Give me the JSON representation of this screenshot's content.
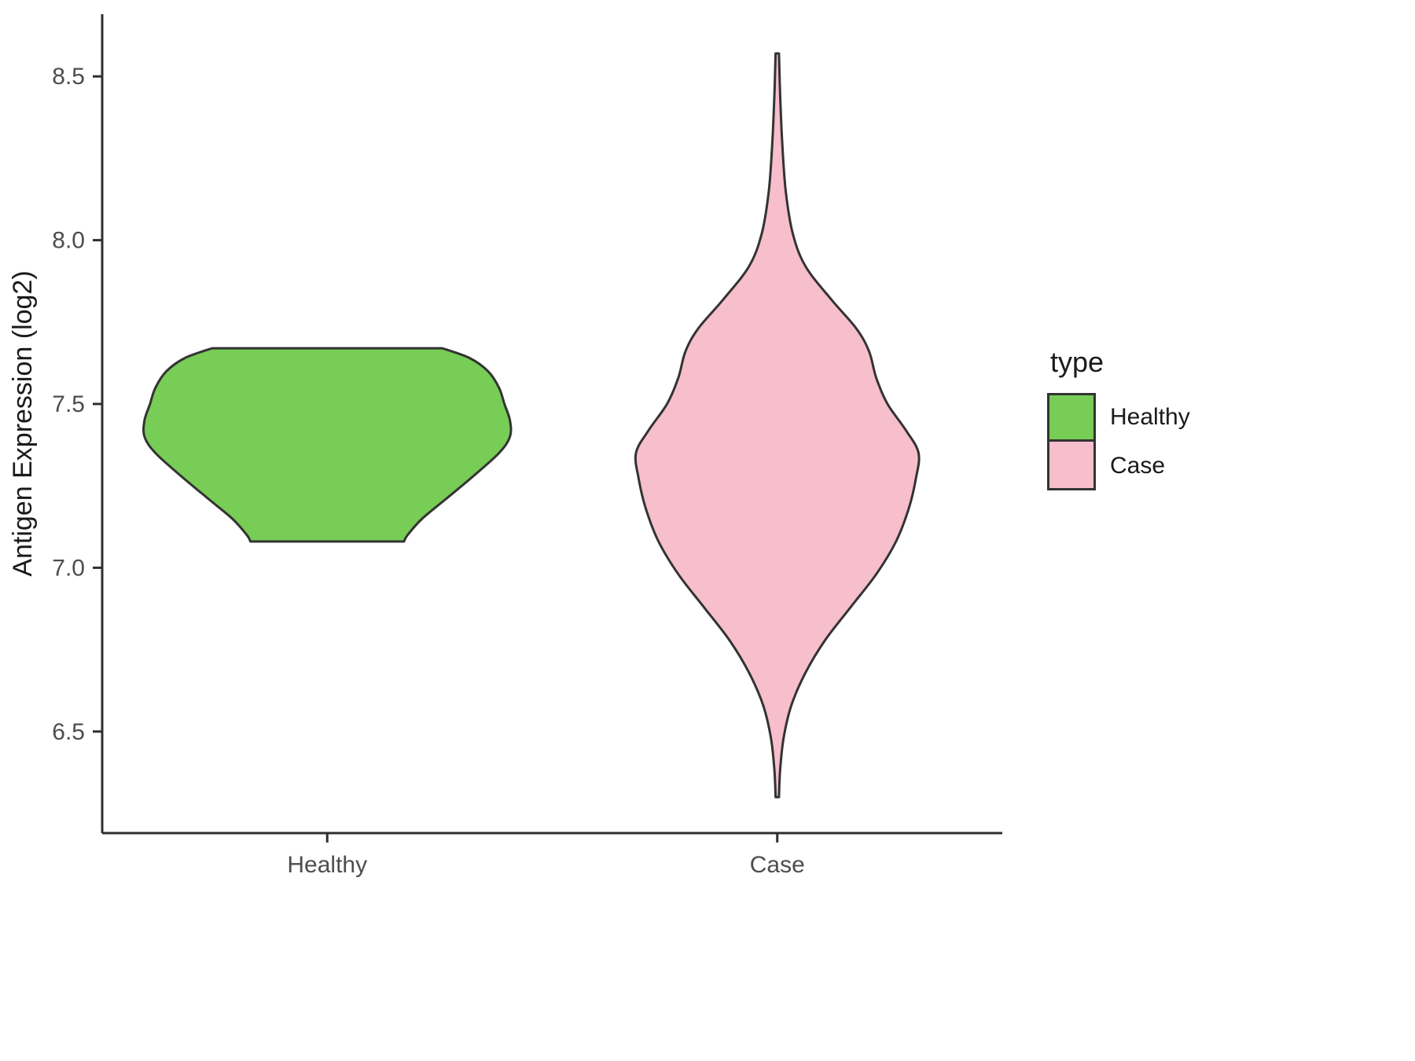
{
  "chart_data": {
    "type": "violin",
    "title": "",
    "xlabel": "",
    "ylabel": "Antigen Expression (log2)",
    "categories": [
      "Healthy",
      "Case"
    ],
    "ylim": [
      6.19,
      8.69
    ],
    "yticks": [
      6.5,
      7.0,
      7.5,
      8.0,
      8.5
    ],
    "ytick_labels": [
      "6.5",
      "7.0",
      "7.5",
      "8.0",
      "8.5"
    ],
    "grid": false,
    "legend": {
      "title": "type",
      "position": "right",
      "entries": [
        {
          "label": "Healthy",
          "color": "#77cd55"
        },
        {
          "label": "Case",
          "color": "#f6bfcb"
        }
      ]
    },
    "series": [
      {
        "name": "Healthy",
        "fill": "#77cd55",
        "outline": "#333333",
        "max_halfwidth_frac": 0.203,
        "y_range": [
          7.08,
          7.67
        ],
        "profile": [
          [
            7.67,
            0.63
          ],
          [
            7.64,
            0.78
          ],
          [
            7.6,
            0.88
          ],
          [
            7.55,
            0.94
          ],
          [
            7.5,
            0.97
          ],
          [
            7.45,
            1.0
          ],
          [
            7.4,
            1.0
          ],
          [
            7.35,
            0.94
          ],
          [
            7.28,
            0.8
          ],
          [
            7.21,
            0.65
          ],
          [
            7.15,
            0.52
          ],
          [
            7.1,
            0.44
          ],
          [
            7.08,
            0.42
          ]
        ]
      },
      {
        "name": "Case",
        "fill": "#f6bfcb",
        "outline": "#333333",
        "max_halfwidth_frac": 0.157,
        "y_range": [
          6.3,
          8.57
        ],
        "profile": [
          [
            8.57,
            0.012
          ],
          [
            8.45,
            0.02
          ],
          [
            8.3,
            0.035
          ],
          [
            8.15,
            0.06
          ],
          [
            8.02,
            0.11
          ],
          [
            7.92,
            0.2
          ],
          [
            7.82,
            0.38
          ],
          [
            7.73,
            0.56
          ],
          [
            7.66,
            0.65
          ],
          [
            7.58,
            0.7
          ],
          [
            7.5,
            0.78
          ],
          [
            7.42,
            0.91
          ],
          [
            7.35,
            1.0
          ],
          [
            7.27,
            0.98
          ],
          [
            7.18,
            0.93
          ],
          [
            7.08,
            0.84
          ],
          [
            6.98,
            0.7
          ],
          [
            6.88,
            0.52
          ],
          [
            6.78,
            0.34
          ],
          [
            6.68,
            0.2
          ],
          [
            6.58,
            0.1
          ],
          [
            6.48,
            0.045
          ],
          [
            6.38,
            0.02
          ],
          [
            6.3,
            0.012
          ]
        ]
      }
    ]
  },
  "axis": {
    "line_color": "#2f2f2f",
    "tick_label_color": "#4d4d4d",
    "title_color": "#1a1a1a"
  }
}
